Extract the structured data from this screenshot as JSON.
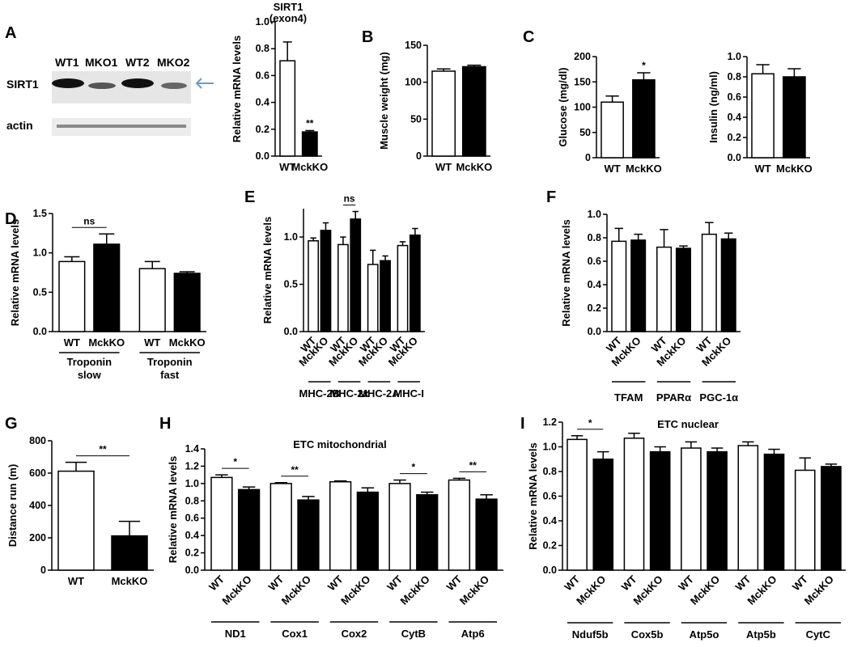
{
  "panels_letters": [
    "A",
    "B",
    "C",
    "D",
    "E",
    "F",
    "G",
    "H",
    "I"
  ],
  "western_blot": {
    "lanes": [
      "WT1",
      "MKO1",
      "WT2",
      "MKO2"
    ],
    "rows": [
      "SIRT1",
      "actin"
    ],
    "arrow_color": "#6a9ad2"
  },
  "colors": {
    "wt": "#ffffff",
    "ko": "#000000",
    "axis": "#000000"
  },
  "chart_data": [
    {
      "id": "A",
      "type": "bar",
      "title": "SIRT1\n(exon4)",
      "ylabel": "Relative mRNA levels",
      "ylim": [
        0,
        1.0
      ],
      "yticks": [
        "0.0",
        "0.2",
        "0.4",
        "0.6",
        "0.8",
        "1.0"
      ],
      "categories": [
        "WT",
        "MckKO"
      ],
      "values": [
        0.71,
        0.18
      ],
      "errors": [
        0.14,
        0.01
      ],
      "annotations": [
        {
          "text": "**",
          "bar": 1
        }
      ]
    },
    {
      "id": "B",
      "type": "bar",
      "ylabel": "Muscle weight (mg)",
      "ylim": [
        0,
        150
      ],
      "yticks": [
        "0",
        "50",
        "100",
        "150"
      ],
      "categories": [
        "WT",
        "MckKO"
      ],
      "values": [
        115,
        121
      ],
      "errors": [
        3,
        2
      ]
    },
    {
      "id": "C1",
      "type": "bar",
      "ylabel": "Glucose (mg/dl)",
      "ylim": [
        0,
        200
      ],
      "yticks": [
        "0",
        "50",
        "100",
        "150",
        "200"
      ],
      "categories": [
        "WT",
        "MckKO"
      ],
      "values": [
        110,
        154
      ],
      "errors": [
        12,
        14
      ],
      "annotations": [
        {
          "text": "*",
          "bar": 1
        }
      ]
    },
    {
      "id": "C2",
      "type": "bar",
      "ylabel": "Insulin (ng/ml)",
      "ylim": [
        0,
        1.0
      ],
      "yticks": [
        "0.0",
        "0.2",
        "0.4",
        "0.6",
        "0.8",
        "1.0"
      ],
      "categories": [
        "WT",
        "MckKO"
      ],
      "values": [
        0.83,
        0.8
      ],
      "errors": [
        0.09,
        0.08
      ]
    },
    {
      "id": "D",
      "type": "bar",
      "ylabel": "Relative mRNA levels",
      "ylim": [
        0,
        1.5
      ],
      "yticks": [
        "0.0",
        "0.5",
        "1.0",
        "1.5"
      ],
      "categories": [
        "WT",
        "MckKO",
        "WT",
        "MckKO"
      ],
      "values": [
        0.89,
        1.11,
        0.8,
        0.74
      ],
      "errors": [
        0.06,
        0.13,
        0.09,
        0.02
      ],
      "groups": [
        "Troponin\nslow",
        "Troponin\nfast"
      ],
      "annotations": [
        {
          "text": "ns",
          "from": 0,
          "to": 1
        }
      ]
    },
    {
      "id": "E",
      "type": "bar",
      "ylabel": "Relative mRNA levels",
      "ylim": [
        0,
        1.3
      ],
      "yticks": [
        "0.0",
        "0.5",
        "1.0"
      ],
      "categories": [
        "WT",
        "MckKO",
        "WT",
        "MckKO",
        "WT",
        "MckKO",
        "WT",
        "MckKO"
      ],
      "values": [
        0.96,
        1.07,
        0.92,
        1.19,
        0.71,
        0.75,
        0.91,
        1.02
      ],
      "errors": [
        0.03,
        0.08,
        0.08,
        0.08,
        0.15,
        0.05,
        0.04,
        0.07
      ],
      "groups": [
        "MHC-2B",
        "MHC-2x",
        "MHC-2A",
        "MHC-I"
      ],
      "annotations": [
        {
          "text": "ns",
          "from": 2,
          "to": 3
        }
      ]
    },
    {
      "id": "F",
      "type": "bar",
      "ylabel": "Relative mRNA levels",
      "ylim": [
        0,
        1.0
      ],
      "yticks": [
        "0.0",
        "0.2",
        "0.4",
        "0.6",
        "0.8",
        "1.0"
      ],
      "categories": [
        "WT",
        "MckKO",
        "WT",
        "MckKO",
        "WT",
        "MckKO"
      ],
      "values": [
        0.77,
        0.78,
        0.72,
        0.71,
        0.83,
        0.79
      ],
      "errors": [
        0.11,
        0.05,
        0.15,
        0.02,
        0.1,
        0.05
      ],
      "groups": [
        "TFAM",
        "PPARα",
        "PGC-1α"
      ]
    },
    {
      "id": "G",
      "type": "bar",
      "ylabel": "Distance run (m)",
      "ylim": [
        0,
        800
      ],
      "yticks": [
        "0",
        "200",
        "400",
        "600",
        "800"
      ],
      "categories": [
        "WT",
        "MckKO"
      ],
      "values": [
        612,
        212
      ],
      "errors": [
        55,
        90
      ],
      "annotations": [
        {
          "text": "**",
          "from": 0,
          "to": 1
        }
      ]
    },
    {
      "id": "H",
      "type": "bar",
      "title": "ETC mitochondrial",
      "ylabel": "Relative mRNA levels",
      "ylim": [
        0,
        1.4
      ],
      "yticks": [
        "0.0",
        "0.2",
        "0.4",
        "0.6",
        "0.8",
        "1.0",
        "1.2",
        "1.4"
      ],
      "categories": [
        "WT",
        "MckKO",
        "WT",
        "MckKO",
        "WT",
        "MckKO",
        "WT",
        "MckKO",
        "WT",
        "MckKO"
      ],
      "values": [
        1.07,
        0.93,
        1.0,
        0.81,
        1.02,
        0.9,
        1.0,
        0.87,
        1.04,
        0.82
      ],
      "errors": [
        0.03,
        0.03,
        0.01,
        0.04,
        0.01,
        0.05,
        0.04,
        0.03,
        0.02,
        0.05
      ],
      "groups": [
        "ND1",
        "Cox1",
        "Cox2",
        "CytB",
        "Atp6"
      ],
      "annotations": [
        {
          "text": "*",
          "from": 0,
          "to": 1
        },
        {
          "text": "**",
          "from": 2,
          "to": 3
        },
        {
          "text": "*",
          "from": 6,
          "to": 7
        },
        {
          "text": "**",
          "from": 8,
          "to": 9
        }
      ]
    },
    {
      "id": "I",
      "type": "bar",
      "title": "ETC nuclear",
      "ylabel": "Relative mRNA levels",
      "ylim": [
        0,
        1.2
      ],
      "yticks": [
        "0.0",
        "0.2",
        "0.4",
        "0.6",
        "0.8",
        "1.0",
        "1.2"
      ],
      "categories": [
        "WT",
        "MckKO",
        "WT",
        "MckKO",
        "WT",
        "MckKO",
        "WT",
        "MckKO",
        "WT",
        "MckKO"
      ],
      "values": [
        1.06,
        0.9,
        1.07,
        0.96,
        0.99,
        0.96,
        1.01,
        0.94,
        0.81,
        0.84
      ],
      "errors": [
        0.03,
        0.06,
        0.04,
        0.04,
        0.05,
        0.03,
        0.03,
        0.04,
        0.1,
        0.02
      ],
      "groups": [
        "Nduf5b",
        "Cox5b",
        "Atp5o",
        "Atp5b",
        "CytC"
      ],
      "annotations": [
        {
          "text": "*",
          "from": 0,
          "to": 1
        }
      ]
    }
  ]
}
